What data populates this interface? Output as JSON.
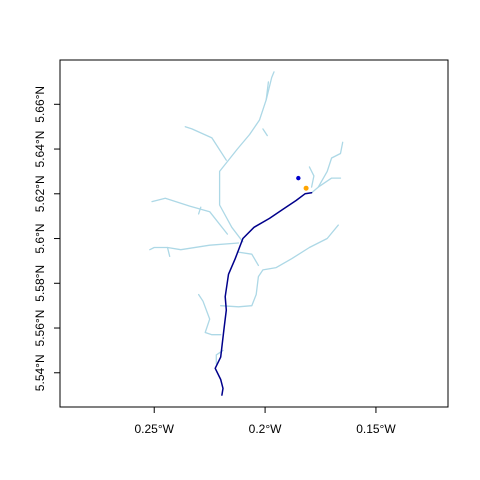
{
  "map": {
    "x_axis": {
      "ticks": [
        {
          "value": -0.25,
          "label": "0.25°W"
        },
        {
          "value": -0.2,
          "label": "0.2°W"
        },
        {
          "value": -0.15,
          "label": "0.15°W"
        }
      ],
      "range": [
        -0.2925,
        -0.1175
      ]
    },
    "y_axis": {
      "ticks": [
        {
          "value": 5.54,
          "label": "5.54°N"
        },
        {
          "value": 5.56,
          "label": "5.56°N"
        },
        {
          "value": 5.58,
          "label": "5.58°N"
        },
        {
          "value": 5.6,
          "label": "5.6°N"
        },
        {
          "value": 5.62,
          "label": "5.62°N"
        },
        {
          "value": 5.64,
          "label": "5.64°N"
        },
        {
          "value": 5.66,
          "label": "5.66°N"
        }
      ],
      "range": [
        5.5247,
        5.6798
      ]
    },
    "colors": {
      "tributary": "#add8e6",
      "main_channel": "#00008b",
      "point_primary": "#0000cd",
      "point_secondary": "#ffa500"
    },
    "main_channel": [
      [
        -0.2195,
        5.53
      ],
      [
        -0.219,
        5.533
      ],
      [
        -0.22,
        5.537
      ],
      [
        -0.2225,
        5.542
      ],
      [
        -0.22,
        5.547
      ],
      [
        -0.2185,
        5.56
      ],
      [
        -0.2175,
        5.568
      ],
      [
        -0.218,
        5.574
      ],
      [
        -0.2165,
        5.584
      ],
      [
        -0.2135,
        5.591
      ],
      [
        -0.21,
        5.6
      ],
      [
        -0.205,
        5.605
      ],
      [
        -0.198,
        5.609
      ],
      [
        -0.192,
        5.613
      ],
      [
        -0.186,
        5.617
      ],
      [
        -0.182,
        5.62
      ],
      [
        -0.179,
        5.6205
      ]
    ],
    "tributaries": [
      [
        [
          -0.21,
          5.5985
        ],
        [
          -0.215,
          5.605
        ],
        [
          -0.2205,
          5.615
        ],
        [
          -0.2205,
          5.63
        ],
        [
          -0.2125,
          5.64
        ],
        [
          -0.207,
          5.6465
        ],
        [
          -0.2025,
          5.653
        ],
        [
          -0.1995,
          5.662
        ],
        [
          -0.197,
          5.672
        ],
        [
          -0.196,
          5.6745
        ]
      ],
      [
        [
          -0.1995,
          5.662
        ],
        [
          -0.1985,
          5.67
        ]
      ],
      [
        [
          -0.201,
          5.649
        ],
        [
          -0.199,
          5.646
        ]
      ],
      [
        [
          -0.2175,
          5.635
        ],
        [
          -0.224,
          5.645
        ],
        [
          -0.233,
          5.649
        ],
        [
          -0.236,
          5.65
        ]
      ],
      [
        [
          -0.217,
          5.602
        ],
        [
          -0.225,
          5.612
        ],
        [
          -0.234,
          5.6145
        ],
        [
          -0.245,
          5.618
        ],
        [
          -0.251,
          5.6165
        ]
      ],
      [
        [
          -0.229,
          5.614
        ],
        [
          -0.23,
          5.611
        ]
      ],
      [
        [
          -0.212,
          5.598
        ],
        [
          -0.225,
          5.597
        ],
        [
          -0.238,
          5.595
        ],
        [
          -0.244,
          5.596
        ],
        [
          -0.25,
          5.596
        ],
        [
          -0.252,
          5.595
        ]
      ],
      [
        [
          -0.244,
          5.596
        ],
        [
          -0.243,
          5.592
        ]
      ],
      [
        [
          -0.2125,
          5.594
        ],
        [
          -0.206,
          5.593
        ],
        [
          -0.203,
          5.588
        ]
      ],
      [
        [
          -0.22,
          5.57
        ],
        [
          -0.212,
          5.5695
        ],
        [
          -0.206,
          5.57
        ],
        [
          -0.204,
          5.575
        ],
        [
          -0.203,
          5.583
        ],
        [
          -0.201,
          5.586
        ],
        [
          -0.195,
          5.587
        ],
        [
          -0.188,
          5.591
        ],
        [
          -0.18,
          5.596
        ],
        [
          -0.172,
          5.6
        ],
        [
          -0.167,
          5.606
        ]
      ],
      [
        [
          -0.22,
          5.557
        ],
        [
          -0.224,
          5.557
        ],
        [
          -0.227,
          5.558
        ],
        [
          -0.225,
          5.564
        ],
        [
          -0.228,
          5.572
        ],
        [
          -0.23,
          5.575
        ]
      ],
      [
        [
          -0.222,
          5.544
        ],
        [
          -0.222,
          5.548
        ],
        [
          -0.219,
          5.55
        ]
      ],
      [
        [
          -0.179,
          5.6205
        ],
        [
          -0.176,
          5.623
        ],
        [
          -0.17,
          5.627
        ],
        [
          -0.166,
          5.627
        ]
      ],
      [
        [
          -0.176,
          5.623
        ],
        [
          -0.172,
          5.63
        ],
        [
          -0.17,
          5.636
        ],
        [
          -0.166,
          5.638
        ],
        [
          -0.165,
          5.643
        ]
      ],
      [
        [
          -0.179,
          5.623
        ],
        [
          -0.178,
          5.628
        ],
        [
          -0.18,
          5.632
        ]
      ]
    ],
    "points": [
      {
        "lon": -0.185,
        "lat": 5.627,
        "role": "primary"
      },
      {
        "lon": -0.1815,
        "lat": 5.6225,
        "role": "secondary"
      }
    ]
  }
}
